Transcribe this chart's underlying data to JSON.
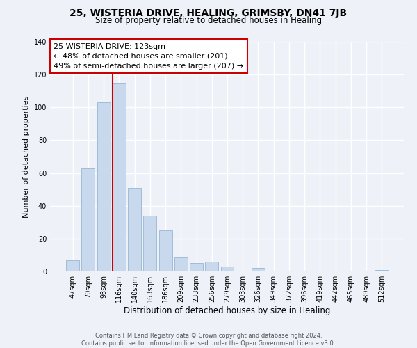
{
  "title1": "25, WISTERIA DRIVE, HEALING, GRIMSBY, DN41 7JB",
  "title2": "Size of property relative to detached houses in Healing",
  "xlabel": "Distribution of detached houses by size in Healing",
  "ylabel": "Number of detached properties",
  "bar_labels": [
    "47sqm",
    "70sqm",
    "93sqm",
    "116sqm",
    "140sqm",
    "163sqm",
    "186sqm",
    "209sqm",
    "233sqm",
    "256sqm",
    "279sqm",
    "303sqm",
    "326sqm",
    "349sqm",
    "372sqm",
    "396sqm",
    "419sqm",
    "442sqm",
    "465sqm",
    "489sqm",
    "512sqm"
  ],
  "bar_values": [
    7,
    63,
    103,
    115,
    51,
    34,
    25,
    9,
    5,
    6,
    3,
    0,
    2,
    0,
    0,
    0,
    0,
    0,
    0,
    0,
    1
  ],
  "bar_color": "#c8d9ee",
  "bar_edge_color": "#a0bcd8",
  "highlight_bar_index": 3,
  "highlight_line_color": "#cc0000",
  "annotation_text": "25 WISTERIA DRIVE: 123sqm\n← 48% of detached houses are smaller (201)\n49% of semi-detached houses are larger (207) →",
  "annotation_box_edgecolor": "#cc0000",
  "annotation_box_facecolor": "#ffffff",
  "ylim": [
    0,
    140
  ],
  "yticks": [
    0,
    20,
    40,
    60,
    80,
    100,
    120,
    140
  ],
  "footer_line1": "Contains HM Land Registry data © Crown copyright and database right 2024.",
  "footer_line2": "Contains public sector information licensed under the Open Government Licence v3.0.",
  "bg_color": "#eef2f8",
  "plot_bg_color": "#eef2f8"
}
